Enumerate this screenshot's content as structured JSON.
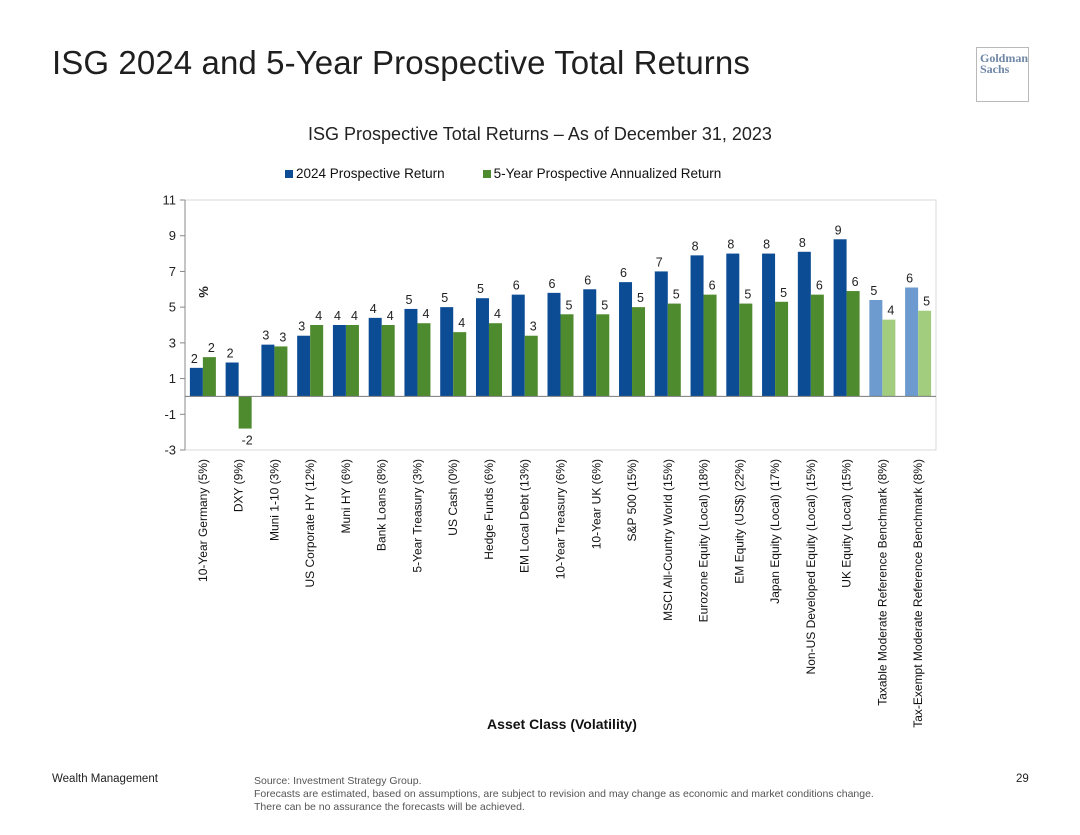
{
  "slide": {
    "title": "ISG 2024 and 5-Year Prospective Total Returns",
    "logo": [
      "Goldman",
      "Sachs"
    ],
    "footer_left": "Wealth Management",
    "source": "Source: Investment Strategy Group.",
    "disclaimer": "Forecasts are estimated, based on assumptions, are subject to revision and may change as economic and market conditions change. There can be no assurance the forecasts will be achieved.",
    "page_number": "29"
  },
  "chart_data": {
    "type": "bar",
    "title": "ISG Prospective Total Returns – As of December 31, 2023",
    "xlabel": "Asset Class (Volatility)",
    "ylabel": "%",
    "ylim": [
      -3,
      11
    ],
    "yticks": [
      11,
      9,
      7,
      5,
      3,
      1,
      -1,
      -3
    ],
    "legend_position": "top",
    "grid": false,
    "categories": [
      "10-Year Germany (5%)",
      "DXY (9%)",
      "Muni 1-10 (3%)",
      "US Corporate HY (12%)",
      "Muni HY (6%)",
      "Bank Loans (8%)",
      "5-Year Treasury (3%)",
      "US Cash (0%)",
      "Hedge Funds (6%)",
      "EM Local Debt (13%)",
      "10-Year Treasury (6%)",
      "10-Year UK (6%)",
      "S&P 500 (15%)",
      "MSCI All-Country World (15%)",
      "Eurozone Equity (Local) (18%)",
      "EM Equity (US$) (22%)",
      "Japan Equity (Local) (17%)",
      "Non-US Developed Equity (Local) (15%)",
      "UK Equity (Local) (15%)",
      "Taxable Moderate Reference Benchmark (8%)",
      "Tax-Exempt Moderate Reference Benchmark (8%)"
    ],
    "series": [
      {
        "name": "2024 Prospective Return",
        "color": "#0b4c95",
        "highlight_color": "#6d9acf",
        "values": [
          1.6,
          1.9,
          2.9,
          3.4,
          4.0,
          4.4,
          4.9,
          5.0,
          5.5,
          5.7,
          5.8,
          6.0,
          6.4,
          7.0,
          7.9,
          8.0,
          8.0,
          8.1,
          8.8,
          5.4,
          6.1
        ],
        "labels": [
          "2",
          "2",
          "3",
          "3",
          "4",
          "4",
          "5",
          "5",
          "5",
          "6",
          "6",
          "6",
          "6",
          "7",
          "8",
          "8",
          "8",
          "8",
          "9",
          "5",
          "6"
        ]
      },
      {
        "name": "5-Year Prospective Annualized Return",
        "color": "#4e8a2e",
        "highlight_color": "#a2cc7e",
        "values": [
          2.2,
          -1.8,
          2.8,
          4.0,
          4.0,
          4.0,
          4.1,
          3.6,
          4.1,
          3.4,
          4.6,
          4.6,
          5.0,
          5.2,
          5.7,
          5.2,
          5.3,
          5.7,
          5.9,
          4.3,
          4.8
        ],
        "labels": [
          "2",
          "-2",
          "3",
          "4",
          "4",
          "4",
          "4",
          "4",
          "4",
          "3",
          "5",
          "5",
          "5",
          "5",
          "6",
          "5",
          "5",
          "6",
          "6",
          "4",
          "5"
        ]
      }
    ],
    "highlighted_categories": [
      "Taxable Moderate Reference Benchmark (8%)",
      "Tax-Exempt Moderate Reference Benchmark (8%)"
    ]
  }
}
